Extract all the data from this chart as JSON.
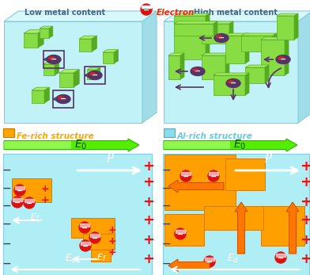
{
  "title_left": "Low metal content",
  "title_right": "High metal content",
  "legend_label": "Electron",
  "legend_color": "#FF2200",
  "fe_rich_label": "Fe-rich structure",
  "fe_rich_color": "#FFA500",
  "al_rich_label": "Al-rich structure",
  "al_rich_color": "#66CCDD",
  "bg_cyan": "#B8F0F8",
  "box_front": "#C0F2F8",
  "box_top": "#D8F8FC",
  "box_right": "#A0DDE8",
  "green_light": "#88DD44",
  "green_dark": "#55AA22",
  "orange_fe": "#FFA000",
  "orange_fe_edge": "#CC7700",
  "title_color": "#446688",
  "electron_red": "#DD1111",
  "electron_purple": "#553366",
  "white": "#FFFFFF",
  "arrow_purple": "#553366",
  "arrow_red": "#FF3300",
  "plus_red": "#EE1111",
  "minus_dark": "#334455",
  "E0_green": "#22DD00",
  "E0_light": "#AAFFA0",
  "figsize": [
    3.92,
    3.47
  ],
  "dpi": 100
}
